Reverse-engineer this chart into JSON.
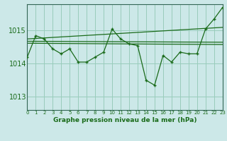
{
  "bg_color": "#cce8e8",
  "grid_color": "#99ccbb",
  "line_color": "#1a6b1a",
  "marker_color": "#1a6b1a",
  "title": "Graphe pression niveau de la mer (hPa)",
  "xlim": [
    0,
    23
  ],
  "ylim": [
    1012.6,
    1015.8
  ],
  "yticks": [
    1013,
    1014,
    1015
  ],
  "xticks": [
    0,
    1,
    2,
    3,
    4,
    5,
    6,
    7,
    8,
    9,
    10,
    11,
    12,
    13,
    14,
    15,
    16,
    17,
    18,
    19,
    20,
    21,
    22,
    23
  ],
  "series1_x": [
    0,
    1,
    2,
    3,
    4,
    5,
    6,
    7,
    8,
    9,
    10,
    11,
    12,
    13,
    14,
    15,
    16,
    17,
    18,
    19,
    20,
    21,
    22,
    23
  ],
  "series1_y": [
    1014.2,
    1014.85,
    1014.75,
    1014.45,
    1014.3,
    1014.45,
    1014.05,
    1014.05,
    1014.2,
    1014.35,
    1015.05,
    1014.75,
    1014.6,
    1014.55,
    1013.5,
    1013.35,
    1014.25,
    1014.05,
    1014.35,
    1014.3,
    1014.3,
    1015.05,
    1015.35,
    1015.7
  ],
  "ref_lines": [
    {
      "x": [
        0,
        23
      ],
      "y": [
        1014.75,
        1015.1
      ]
    },
    {
      "x": [
        0,
        23
      ],
      "y": [
        1014.68,
        1014.65
      ]
    },
    {
      "x": [
        0,
        23
      ],
      "y": [
        1014.62,
        1014.58
      ]
    }
  ]
}
